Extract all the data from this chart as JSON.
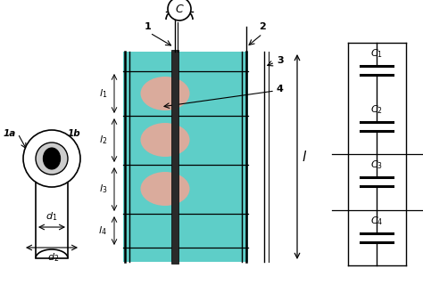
{
  "bg_color": "#ffffff",
  "teal_color": "#5ecec8",
  "salmon_color": "#e8a898",
  "figsize": [
    4.74,
    3.2
  ],
  "dpi": 100,
  "fig_w": 474,
  "fig_h": 320
}
